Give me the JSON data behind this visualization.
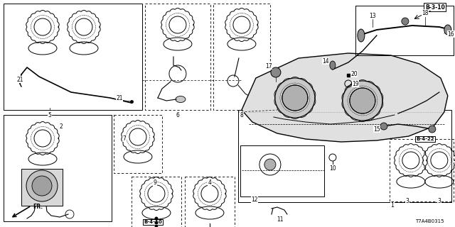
{
  "bg_color": "#ffffff",
  "diagram_code": "T7A4B0315",
  "figsize": [
    6.4,
    3.2
  ],
  "dpi": 100,
  "xlim": [
    0,
    640
  ],
  "ylim": [
    0,
    320
  ]
}
